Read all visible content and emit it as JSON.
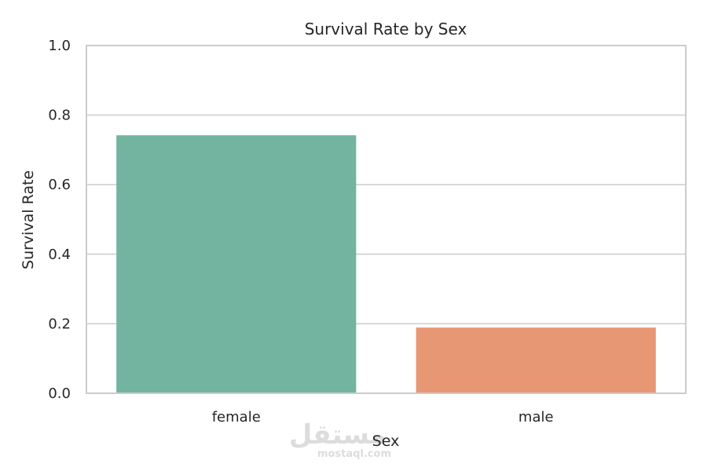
{
  "chart_data": {
    "type": "bar",
    "title": "Survival Rate by Sex",
    "xlabel": "Sex",
    "ylabel": "Survival Rate",
    "categories": [
      "female",
      "male"
    ],
    "values": [
      0.742,
      0.189
    ],
    "ylim": [
      0,
      1.0
    ],
    "yticks": [
      "0.0",
      "0.2",
      "0.4",
      "0.6",
      "0.8",
      "1.0"
    ],
    "grid": "horizontal",
    "colors": [
      "#73b4a0",
      "#e89774"
    ]
  },
  "watermark": {
    "arabic": "مستقل",
    "latin": "mostaql.com"
  }
}
